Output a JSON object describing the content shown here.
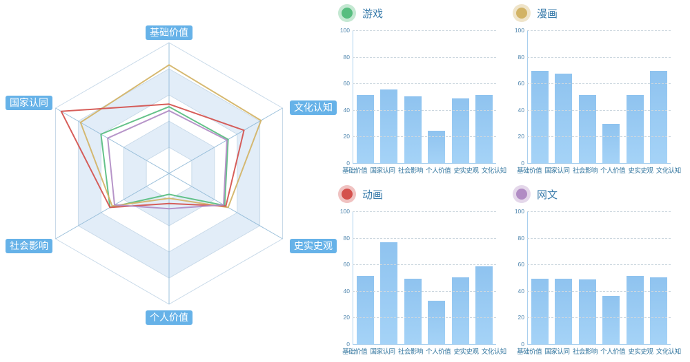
{
  "radar": {
    "axes": [
      "基础价值",
      "文化认知",
      "史实史观",
      "个人价值",
      "社会影响",
      "国家认同"
    ],
    "max": 100,
    "label_bg": "#66b2e8",
    "label_text_color": "#ffffff",
    "band_colors": [
      "#ffffff",
      "#e2edf8"
    ],
    "series": [
      {
        "name": "游戏",
        "color": "#57bd7f",
        "values": [
          51,
          52,
          49,
          16,
          52,
          60
        ]
      },
      {
        "name": "漫画",
        "color": "#d2b365",
        "values": [
          83,
          81,
          52,
          19,
          50,
          78
        ]
      },
      {
        "name": "动画",
        "color": "#d4504c",
        "values": [
          53,
          66,
          50,
          23,
          52,
          95
        ]
      },
      {
        "name": "网文",
        "color": "#b18cc4",
        "values": [
          48,
          51,
          48,
          27,
          48,
          54
        ]
      }
    ]
  },
  "chart_data": [
    {
      "type": "bar",
      "title": "游戏",
      "legend_color": "#57bd7f",
      "categories": [
        "基础价值",
        "国家认同",
        "社会影响",
        "个人价值",
        "史实史观",
        "文化认知"
      ],
      "values": [
        52,
        56,
        51,
        25,
        49,
        52
      ],
      "ylim": [
        0,
        100
      ],
      "yticks": [
        0,
        20,
        40,
        60,
        80,
        100
      ],
      "bar_color": "#9bcaf2",
      "grid": "dashed",
      "legend_position": "top-left"
    },
    {
      "type": "bar",
      "title": "漫画",
      "legend_color": "#d2b365",
      "categories": [
        "基础价值",
        "国家认同",
        "社会影响",
        "个人价值",
        "史实史观",
        "文化认知"
      ],
      "values": [
        70,
        68,
        52,
        30,
        52,
        70
      ],
      "ylim": [
        0,
        100
      ],
      "yticks": [
        0,
        20,
        40,
        60,
        80,
        100
      ],
      "bar_color": "#9bcaf2",
      "grid": "dashed",
      "legend_position": "top-left"
    },
    {
      "type": "bar",
      "title": "动画",
      "legend_color": "#d4504c",
      "categories": [
        "基础价值",
        "国家认同",
        "社会影响",
        "个人价值",
        "史实史观",
        "文化认知"
      ],
      "values": [
        52,
        77,
        50,
        33,
        51,
        59
      ],
      "ylim": [
        0,
        100
      ],
      "yticks": [
        0,
        20,
        40,
        60,
        80,
        100
      ],
      "bar_color": "#9bcaf2",
      "grid": "dashed",
      "legend_position": "top-left"
    },
    {
      "type": "bar",
      "title": "网文",
      "legend_color": "#b18cc4",
      "categories": [
        "基础价值",
        "国家认同",
        "社会影响",
        "个人价值",
        "史实史观",
        "文化认知"
      ],
      "values": [
        50,
        50,
        49,
        37,
        52,
        51
      ],
      "ylim": [
        0,
        100
      ],
      "yticks": [
        0,
        20,
        40,
        60,
        80,
        100
      ],
      "bar_color": "#9bcaf2",
      "grid": "dashed",
      "legend_position": "top-left"
    }
  ]
}
